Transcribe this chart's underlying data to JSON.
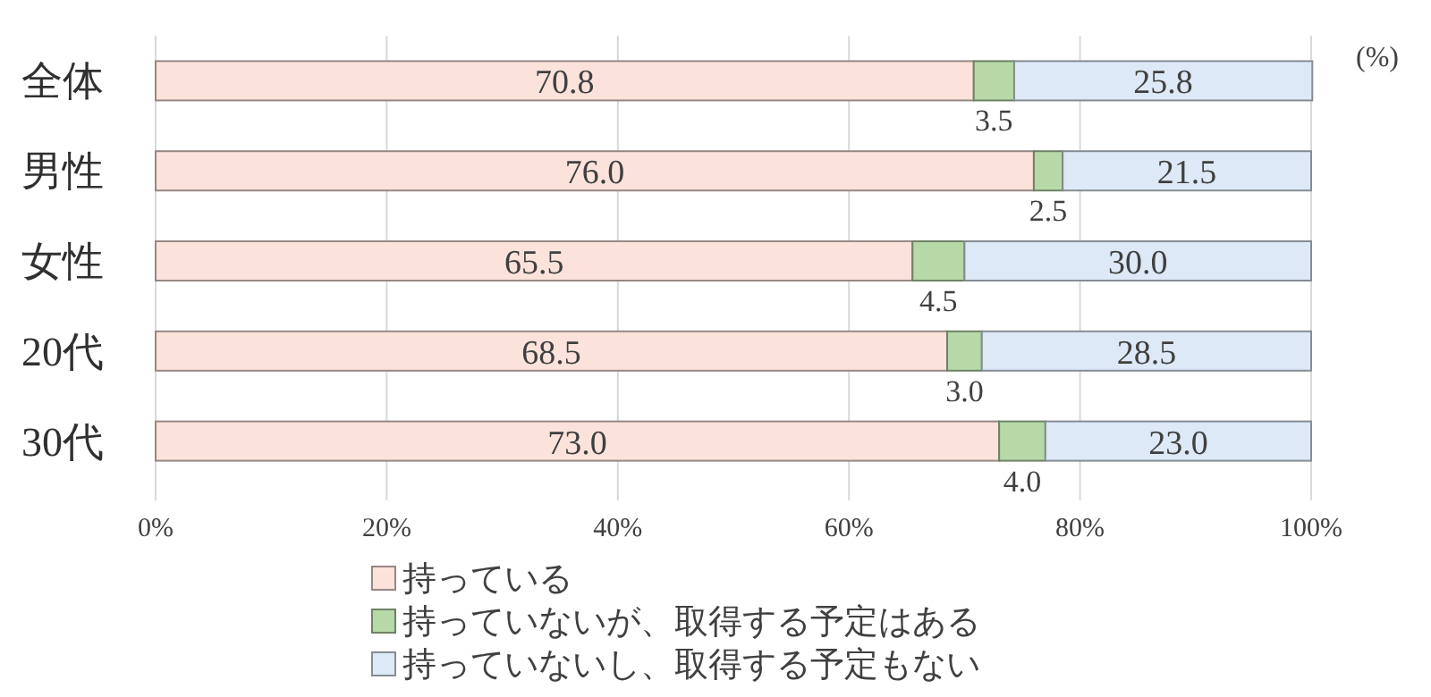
{
  "chart_data": {
    "type": "bar",
    "orientation": "horizontal",
    "stacked": true,
    "categories": [
      "全体",
      "男性",
      "女性",
      "20代",
      "30代"
    ],
    "series": [
      {
        "name": "持っている",
        "color": "#fbe3dc",
        "values": [
          70.8,
          76.0,
          65.5,
          68.5,
          73.0
        ],
        "value_labels": [
          "70.8",
          "76.0",
          "65.5",
          "68.5",
          "73.0"
        ]
      },
      {
        "name": "持っていないが、取得する予定はある",
        "color": "#b7d9a8",
        "values": [
          3.5,
          2.5,
          4.5,
          3.0,
          4.0
        ],
        "value_labels": [
          "3.5",
          "2.5",
          "4.5",
          "3.0",
          "4.0"
        ]
      },
      {
        "name": "持っていないし、取得する予定もない",
        "color": "#dde9f6",
        "values": [
          25.8,
          21.5,
          30.0,
          28.5,
          23.0
        ],
        "value_labels": [
          "25.8",
          "21.5",
          "30.0",
          "28.5",
          "23.0"
        ]
      }
    ],
    "xlim": [
      0,
      100
    ],
    "xticks": [
      {
        "value": 0,
        "label": "0%"
      },
      {
        "value": 20,
        "label": "20%"
      },
      {
        "value": 40,
        "label": "40%"
      },
      {
        "value": 60,
        "label": "60%"
      },
      {
        "value": 80,
        "label": "80%"
      },
      {
        "value": 100,
        "label": "100%"
      }
    ],
    "grid": "x",
    "legend": "bottom",
    "annotations": [
      "(%)"
    ]
  }
}
